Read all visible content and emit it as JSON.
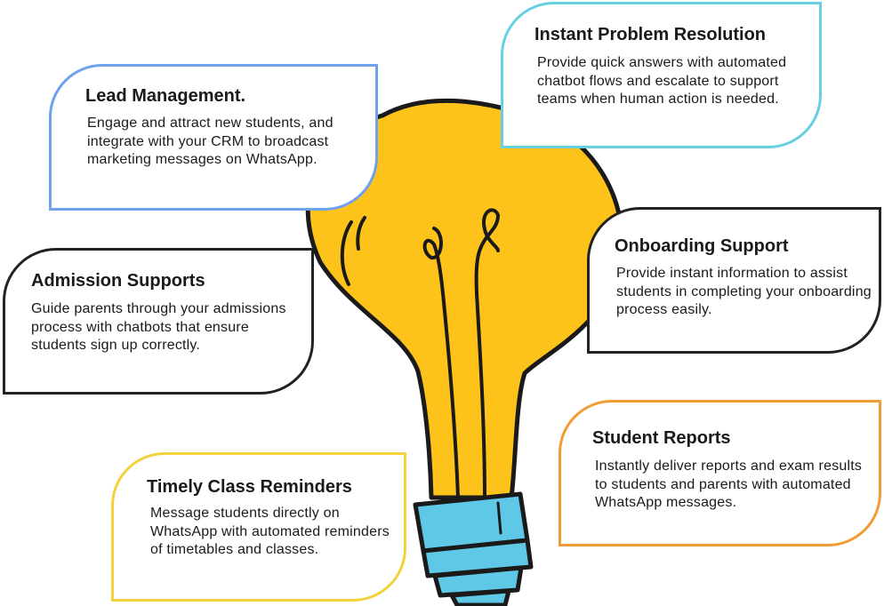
{
  "colors": {
    "bulb_fill": "#fdc31a",
    "bulb_outline": "#1a1a1a",
    "base_fill": "#5ec8e6",
    "lead_border": "#6ea1ee",
    "instant_border": "#67cfe3",
    "admission_border": "#222222",
    "onboarding_border": "#222222",
    "reports_border": "#f19c35",
    "timely_border": "#f3d23c"
  },
  "cards": {
    "lead": {
      "title": "Lead Management.",
      "body": "Engage and attract new students, and integrate with your CRM to broadcast marketing messages on WhatsApp."
    },
    "instant": {
      "title": "Instant Problem Resolution",
      "body": "Provide quick answers with automated chatbot flows and escalate to support teams when human action is needed."
    },
    "admission": {
      "title": "Admission Supports",
      "body": "Guide parents through your admissions process with chatbots that ensure students sign up correctly."
    },
    "onboarding": {
      "title": "Onboarding Support",
      "body": "Provide instant information to assist students in completing your onboarding process easily."
    },
    "reports": {
      "title": "Student Reports",
      "body": "Instantly deliver reports and exam results to students and parents with automated WhatsApp messages."
    },
    "timely": {
      "title": "Timely Class Reminders",
      "body": "Message students directly on WhatsApp with automated reminders of timetables and classes."
    }
  }
}
